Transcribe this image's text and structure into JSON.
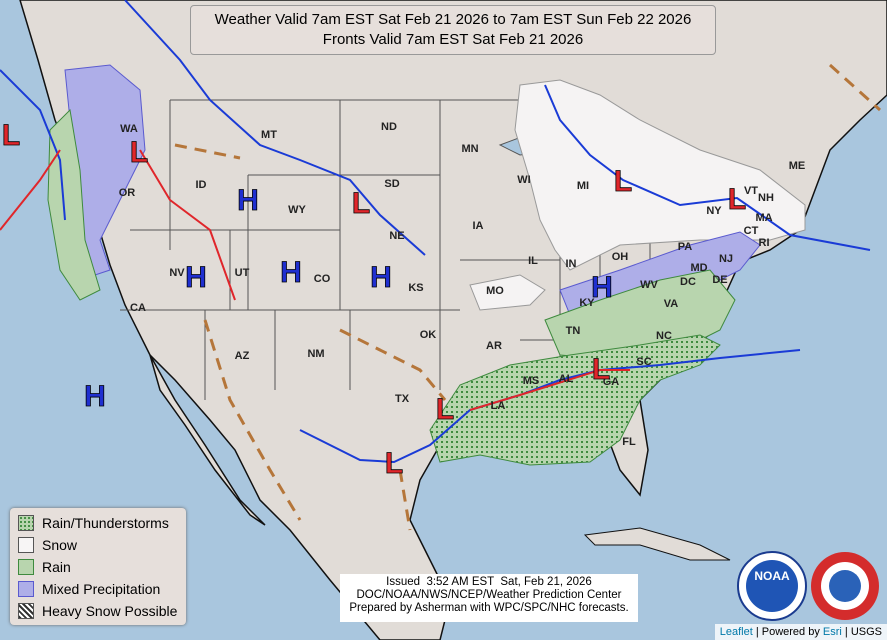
{
  "header": {
    "title_lines": [
      "Weather Valid 7am EST Sat Feb 21 2026 to 7am EST Sun Feb 22 2026",
      "Fronts Valid 7am EST Sat Feb 21 2026"
    ]
  },
  "legend": {
    "items": [
      "Rain/Thunderstorms",
      "Snow",
      "Rain",
      "Mixed Precipitation",
      "Heavy Snow Possible"
    ]
  },
  "states": [
    "WA",
    "MT",
    "ND",
    "MN",
    "ID",
    "WY",
    "SD",
    "OR",
    "NV",
    "UT",
    "CO",
    "NE",
    "IA",
    "WI",
    "MI",
    "IL",
    "IN",
    "OH",
    "KS",
    "MO",
    "KY",
    "WV",
    "VA",
    "PA",
    "NY",
    "VT",
    "NH",
    "ME",
    "MA",
    "CT",
    "RI",
    "NJ",
    "MD",
    "DE",
    "DC",
    "CA",
    "AZ",
    "NM",
    "OK",
    "AR",
    "TN",
    "NC",
    "SC",
    "MS",
    "AL",
    "GA",
    "TX",
    "LA",
    "FL"
  ],
  "highs": [
    "H",
    "H",
    "H",
    "H",
    "H",
    "H"
  ],
  "lows": [
    "L",
    "L",
    "L",
    "L",
    "L",
    "L",
    "L",
    "L"
  ],
  "issued": {
    "lines": [
      "Issued  3:52 AM EST  Sat, Feb 21, 2026",
      "DOC/NOAA/NWS/NCEP/Weather Prediction Center",
      "Prepared by Asherman with WPC/SPC/NHC forecasts."
    ]
  },
  "logo": {
    "noaa": "NOAA"
  },
  "attribution": [
    "Leaflet",
    " | Powered by ",
    "Esri",
    " | USGS"
  ]
}
